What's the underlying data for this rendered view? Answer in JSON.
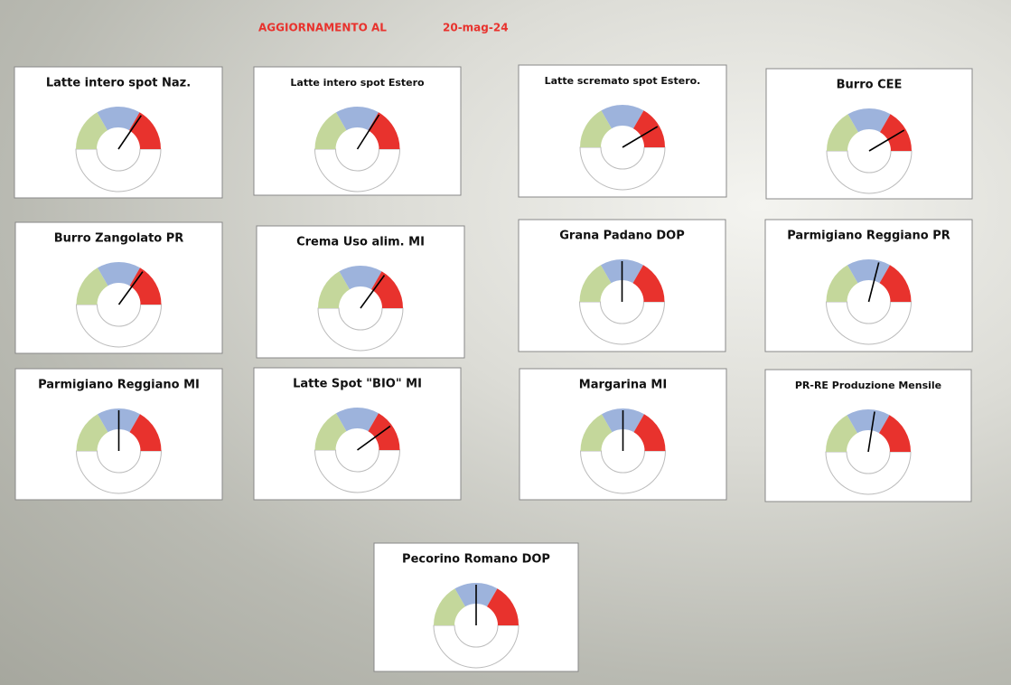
{
  "header": {
    "label": "AGGIORNAMENTO AL",
    "date": "20-mag-24"
  },
  "chart_data": [
    {
      "type": "gauge",
      "title": "Latte intero spot Naz.",
      "ylim": [
        0,
        100
      ],
      "value": 69,
      "colors": [
        "#c4d79b",
        "#9db3dc",
        "#e8322d"
      ]
    },
    {
      "type": "gauge",
      "title": "Latte intero spot Estero",
      "ylim": [
        0,
        100
      ],
      "value": 68,
      "colors": [
        "#c4d79b",
        "#9db3dc",
        "#e8322d"
      ]
    },
    {
      "type": "gauge",
      "title": "Latte scremato spot Estero.",
      "ylim": [
        0,
        100
      ],
      "value": 83,
      "colors": [
        "#c4d79b",
        "#9db3dc",
        "#e8322d"
      ]
    },
    {
      "type": "gauge",
      "title": "Burro CEE",
      "ylim": [
        0,
        100
      ],
      "value": 83,
      "colors": [
        "#c4d79b",
        "#9db3dc",
        "#e8322d"
      ]
    },
    {
      "type": "gauge",
      "title": "Burro Zangolato PR",
      "ylim": [
        0,
        100
      ],
      "value": 70,
      "colors": [
        "#c4d79b",
        "#9db3dc",
        "#e8322d"
      ]
    },
    {
      "type": "gauge",
      "title": "Crema Uso alim. MI",
      "ylim": [
        0,
        100
      ],
      "value": 70,
      "colors": [
        "#c4d79b",
        "#9db3dc",
        "#e8322d"
      ]
    },
    {
      "type": "gauge",
      "title": "Grana Padano DOP",
      "ylim": [
        0,
        100
      ],
      "value": 50,
      "colors": [
        "#c4d79b",
        "#9db3dc",
        "#e8322d"
      ]
    },
    {
      "type": "gauge",
      "title": "Parmigiano Reggiano PR",
      "ylim": [
        0,
        100
      ],
      "value": 58,
      "colors": [
        "#c4d79b",
        "#9db3dc",
        "#e8322d"
      ]
    },
    {
      "type": "gauge",
      "title": "Parmigiano Reggiano MI",
      "ylim": [
        0,
        100
      ],
      "value": 50,
      "colors": [
        "#c4d79b",
        "#9db3dc",
        "#e8322d"
      ]
    },
    {
      "type": "gauge",
      "title": "Latte Spot \"BIO\" MI",
      "ylim": [
        0,
        100
      ],
      "value": 80,
      "colors": [
        "#c4d79b",
        "#9db3dc",
        "#e8322d"
      ]
    },
    {
      "type": "gauge",
      "title": "Margarina MI",
      "ylim": [
        0,
        100
      ],
      "value": 50,
      "colors": [
        "#c4d79b",
        "#9db3dc",
        "#e8322d"
      ]
    },
    {
      "type": "gauge",
      "title": "PR-RE Produzione Mensile",
      "ylim": [
        0,
        100
      ],
      "value": 55,
      "colors": [
        "#c4d79b",
        "#9db3dc",
        "#e8322d"
      ]
    },
    {
      "type": "gauge",
      "title": "Pecorino Romano DOP",
      "ylim": [
        0,
        100
      ],
      "value": 50,
      "colors": [
        "#c4d79b",
        "#9db3dc",
        "#e8322d"
      ]
    }
  ]
}
